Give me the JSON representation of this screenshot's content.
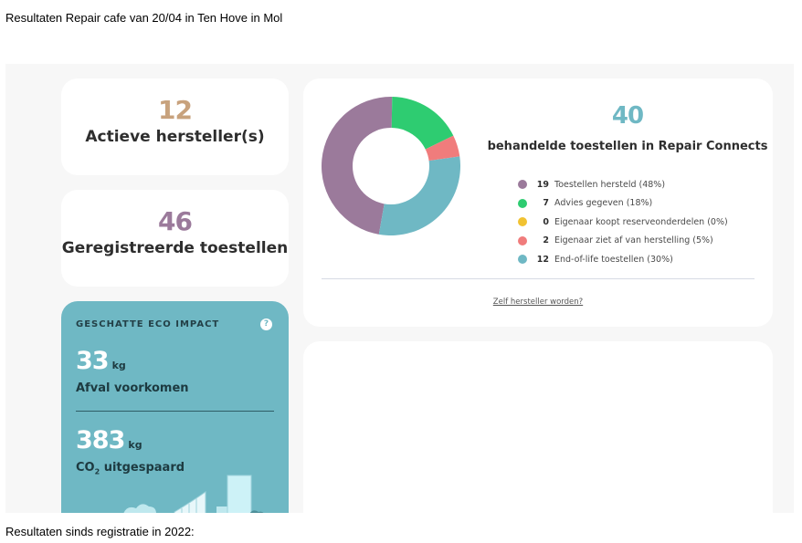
{
  "page": {
    "title": "Resultaten Repair cafe van 20/04 in Ten Hove in Mol",
    "footer": "Resultaten sinds registratie in 2022:"
  },
  "stats": {
    "active_repairers": {
      "value": "12",
      "label": "Actieve hersteller(s)",
      "color": "#c8a27d"
    },
    "registered_devices": {
      "value": "46",
      "label": "Geregistreerde toestellen",
      "color": "#9b7a9b"
    }
  },
  "eco": {
    "heading": "GESCHATTE ECO IMPACT",
    "help": "?",
    "waste": {
      "value": "33",
      "unit": "kg",
      "label": "Afval voorkomen"
    },
    "co2": {
      "value": "383",
      "unit": "kg",
      "label_prefix": "CO",
      "label_sub": "2",
      "label_suffix": " uitgespaard"
    },
    "background": "#6fb8c4"
  },
  "chart_data": {
    "type": "pie",
    "total": "40",
    "title": "behandelde toestellen in Repair Connects",
    "legend_placement": "right",
    "series": [
      {
        "count": "19",
        "name": "Toestellen hersteld (48%)",
        "value": 19,
        "color": "#9b7a9b"
      },
      {
        "count": "7",
        "name": "Advies gegeven (18%)",
        "value": 7,
        "color": "#2ecc71"
      },
      {
        "count": "0",
        "name": "Eigenaar koopt reserveonderdelen (0%)",
        "value": 0,
        "color": "#f1c232"
      },
      {
        "count": "2",
        "name": "Eigenaar ziet af van herstelling (5%)",
        "value": 2,
        "color": "#f07c7c"
      },
      {
        "count": "12",
        "name": "End-of-life toestellen (30%)",
        "value": 12,
        "color": "#6fb8c4"
      }
    ]
  },
  "link": {
    "label": "Zelf hersteller worden?"
  }
}
